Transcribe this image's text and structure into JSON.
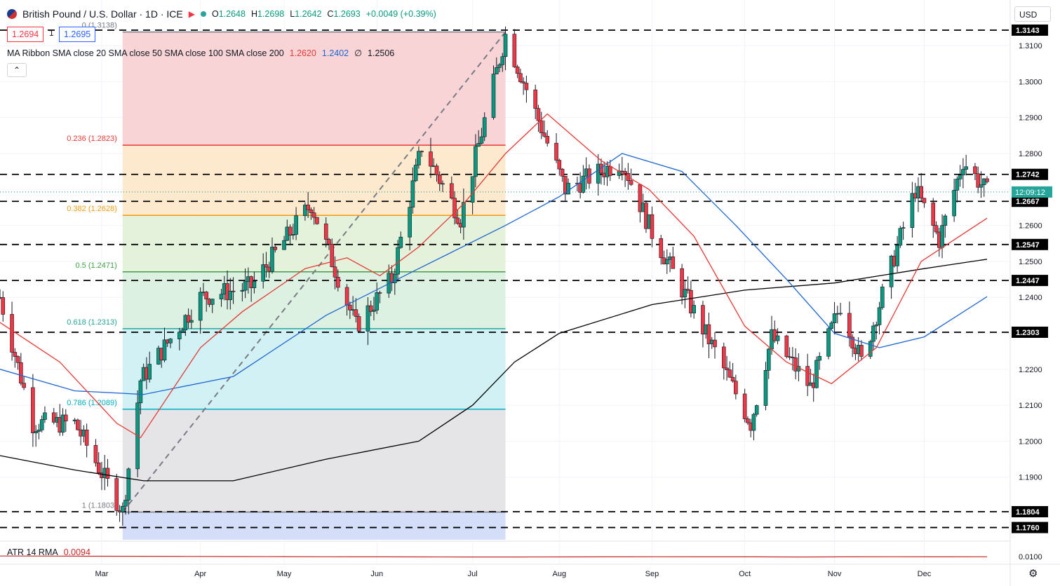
{
  "header": {
    "title": "British Pound / U.S. Dollar · 1D · ICE",
    "ohlc": {
      "o_label": "O",
      "o": "1.2648",
      "h_label": "H",
      "h": "1.2698",
      "l_label": "L",
      "l": "1.2642",
      "c_label": "C",
      "c": "1.2693",
      "change": "+0.0049 (+0.39%)"
    },
    "sell_price": "1.2694",
    "spread": "1",
    "buy_price": "1.2695",
    "currency": "USD"
  },
  "indicators": {
    "ma_ribbon": {
      "label": "MA Ribbon SMA close 20 SMA close 50 SMA close 100 SMA close 200",
      "v20": "1.2620",
      "v50": "1.2402",
      "v100": "∅",
      "v200": "1.2506",
      "colors": {
        "sma20": "#e53935",
        "sma50": "#1e66d0",
        "sma200": "#000000"
      }
    },
    "atr": {
      "label": "ATR 14 RMA",
      "value": "0.0094",
      "color": "#c62828"
    }
  },
  "countdown": "12:09:12",
  "chart_data": {
    "type": "candlestick",
    "instrument": "GBPUSD",
    "y_axis": {
      "ticks": [
        1.19,
        1.2,
        1.21,
        1.22,
        1.23,
        1.24,
        1.25,
        1.26,
        1.27,
        1.28,
        1.29,
        1.3,
        1.31
      ],
      "tick_labels": [
        "1.1900",
        "1.2000",
        "1.2100",
        "1.2200",
        "1.2300",
        "1.2400",
        "1.2500",
        "1.2600",
        "1.2700",
        "1.2800",
        "1.2900",
        "1.3000",
        "1.3100"
      ],
      "range": [
        1.1744,
        1.32
      ]
    },
    "x_axis": {
      "labels": [
        "Mar",
        "Apr",
        "May",
        "Jun",
        "Jul",
        "Aug",
        "Sep",
        "Oct",
        "Nov",
        "Dec"
      ],
      "month_starts": [
        "2023-03-01",
        "2023-04-03",
        "2023-05-01",
        "2023-06-01",
        "2023-07-03",
        "2023-08-01",
        "2023-09-01",
        "2023-10-02",
        "2023-11-01",
        "2023-12-01"
      ],
      "range": [
        "2023-01-26",
        "2023-12-22"
      ]
    },
    "horizontal_levels": [
      {
        "value": 1.3143,
        "label": "1.3143"
      },
      {
        "value": 1.2742,
        "label": "1.2742"
      },
      {
        "value": 1.2667,
        "label": "1.2667"
      },
      {
        "value": 1.2547,
        "label": "1.2547"
      },
      {
        "value": 1.2447,
        "label": "1.2447"
      },
      {
        "value": 1.2303,
        "label": "1.2303"
      },
      {
        "value": 1.1804,
        "label": "1.1804"
      },
      {
        "value": 1.176,
        "label": "1.1760"
      }
    ],
    "fibonacci": {
      "from": {
        "date": "2023-03-08",
        "price": 1.1803
      },
      "to": {
        "date": "2023-07-14",
        "price": 1.3138
      },
      "extend_to": "2023-07-14",
      "levels": [
        {
          "ratio": "0",
          "price": 1.3138,
          "label": "0 (1.3138)",
          "color": "#787b86",
          "fill": "#f7cfd2"
        },
        {
          "ratio": "0.236",
          "price": 1.2823,
          "label": "0.236 (1.2823)",
          "color": "#e53935",
          "fill": "#fde8c9"
        },
        {
          "ratio": "0.382",
          "price": 1.2628,
          "label": "0.382 (1.2628)",
          "color": "#f39c12",
          "fill": "#e1f1d7"
        },
        {
          "ratio": "0.5",
          "price": 1.2471,
          "label": "0.5 (1.2471)",
          "color": "#43a047",
          "fill": "#d9efe0"
        },
        {
          "ratio": "0.618",
          "price": 1.2313,
          "label": "0.618 (1.2313)",
          "color": "#26a69a",
          "fill": "#cdeff4"
        },
        {
          "ratio": "0.786",
          "price": 1.2089,
          "label": "0.786 (1.2089)",
          "color": "#00acc1",
          "fill": "#e2e2e6"
        },
        {
          "ratio": "1",
          "price": 1.1803,
          "label": "1 (1.1803)",
          "color": "#787b86",
          "fill": "#cfdaf7"
        }
      ]
    },
    "sma20": [
      [
        "2023-01-26",
        1.233
      ],
      [
        "2023-02-15",
        1.222
      ],
      [
        "2023-03-06",
        1.205
      ],
      [
        "2023-03-14",
        1.201
      ],
      [
        "2023-04-03",
        1.226
      ],
      [
        "2023-04-17",
        1.236
      ],
      [
        "2023-05-08",
        1.248
      ],
      [
        "2023-05-22",
        1.251
      ],
      [
        "2023-06-02",
        1.246
      ],
      [
        "2023-06-15",
        1.254
      ],
      [
        "2023-06-30",
        1.266
      ],
      [
        "2023-07-14",
        1.28
      ],
      [
        "2023-07-28",
        1.291
      ],
      [
        "2023-08-15",
        1.278
      ],
      [
        "2023-08-31",
        1.27
      ],
      [
        "2023-09-15",
        1.257
      ],
      [
        "2023-10-02",
        1.232
      ],
      [
        "2023-10-16",
        1.222
      ],
      [
        "2023-10-31",
        1.216
      ],
      [
        "2023-11-15",
        1.226
      ],
      [
        "2023-11-30",
        1.25
      ],
      [
        "2023-12-22",
        1.262
      ]
    ],
    "sma50": [
      [
        "2023-01-26",
        1.22
      ],
      [
        "2023-02-20",
        1.214
      ],
      [
        "2023-03-15",
        1.213
      ],
      [
        "2023-04-14",
        1.218
      ],
      [
        "2023-05-15",
        1.235
      ],
      [
        "2023-06-15",
        1.248
      ],
      [
        "2023-07-14",
        1.26
      ],
      [
        "2023-08-01",
        1.268
      ],
      [
        "2023-08-22",
        1.28
      ],
      [
        "2023-09-11",
        1.275
      ],
      [
        "2023-09-29",
        1.26
      ],
      [
        "2023-10-16",
        1.245
      ],
      [
        "2023-11-01",
        1.23
      ],
      [
        "2023-11-16",
        1.226
      ],
      [
        "2023-12-01",
        1.229
      ],
      [
        "2023-12-22",
        1.2402
      ]
    ],
    "sma200": [
      [
        "2023-01-26",
        1.196
      ],
      [
        "2023-02-20",
        1.192
      ],
      [
        "2023-03-15",
        1.189
      ],
      [
        "2023-04-14",
        1.189
      ],
      [
        "2023-05-15",
        1.195
      ],
      [
        "2023-06-15",
        1.2
      ],
      [
        "2023-07-03",
        1.21
      ],
      [
        "2023-07-17",
        1.222
      ],
      [
        "2023-08-01",
        1.23
      ],
      [
        "2023-09-01",
        1.238
      ],
      [
        "2023-10-02",
        1.242
      ],
      [
        "2023-11-01",
        1.244
      ],
      [
        "2023-12-01",
        1.248
      ],
      [
        "2023-12-22",
        1.2506
      ]
    ],
    "atr_series": [
      0.0108,
      0.0106,
      0.0104,
      0.0102,
      0.01,
      0.0098,
      0.0096,
      0.0094,
      0.0092,
      0.0091,
      0.009,
      0.009,
      0.0091,
      0.0093,
      0.0094,
      0.0093,
      0.0092,
      0.009,
      0.0092,
      0.0094,
      0.0093,
      0.0094
    ]
  }
}
